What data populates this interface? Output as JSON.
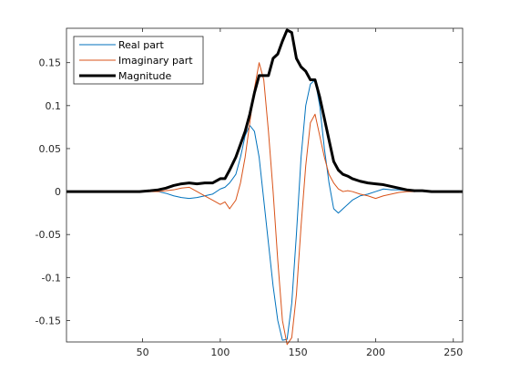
{
  "chart_data": {
    "type": "line",
    "title": "",
    "xlabel": "",
    "ylabel": "",
    "xlim": [
      1,
      256
    ],
    "ylim": [
      -0.175,
      0.19
    ],
    "xticks": [
      50,
      100,
      150,
      200,
      250
    ],
    "xtick_labels": [
      "50",
      "100",
      "150",
      "200",
      "250"
    ],
    "yticks": [
      -0.15,
      -0.1,
      -0.05,
      0,
      0.05,
      0.1,
      0.15
    ],
    "ytick_labels": [
      "-0.15",
      "-0.1",
      "-0.05",
      "0",
      "0.05",
      "0.1",
      "0.15"
    ],
    "grid": false,
    "legend_position": "top-left",
    "series": [
      {
        "name": "Real part",
        "color": "#0072BD",
        "x": [
          1,
          48,
          55,
          60,
          65,
          70,
          75,
          80,
          85,
          90,
          95,
          100,
          103,
          106,
          110,
          113,
          116,
          119,
          122,
          125,
          128,
          131,
          134,
          137,
          140,
          143,
          146,
          149,
          152,
          155,
          158,
          161,
          164,
          167,
          170,
          173,
          176,
          179,
          182,
          185,
          190,
          195,
          200,
          205,
          210,
          215,
          220,
          225,
          230,
          236,
          256
        ],
        "y": [
          0,
          0,
          0.001,
          0,
          -0.002,
          -0.005,
          -0.007,
          -0.008,
          -0.007,
          -0.005,
          -0.003,
          0.003,
          0.005,
          0.01,
          0.02,
          0.04,
          0.065,
          0.077,
          0.07,
          0.04,
          -0.01,
          -0.06,
          -0.11,
          -0.15,
          -0.173,
          -0.172,
          -0.13,
          -0.05,
          0.04,
          0.1,
          0.125,
          0.13,
          0.1,
          0.05,
          0.01,
          -0.02,
          -0.025,
          -0.02,
          -0.015,
          -0.01,
          -0.005,
          -0.003,
          0,
          0.003,
          0.002,
          0.002,
          0.001,
          0,
          0.001,
          0,
          0
        ]
      },
      {
        "name": "Imaginary part",
        "color": "#D95319",
        "x": [
          1,
          48,
          55,
          60,
          65,
          70,
          75,
          80,
          85,
          90,
          95,
          100,
          103,
          106,
          110,
          113,
          116,
          119,
          122,
          125,
          128,
          131,
          134,
          137,
          140,
          143,
          146,
          149,
          152,
          155,
          158,
          161,
          164,
          167,
          170,
          173,
          176,
          179,
          182,
          185,
          190,
          195,
          200,
          205,
          210,
          215,
          220,
          225,
          230,
          236,
          256
        ],
        "y": [
          0,
          0,
          0,
          0,
          0.001,
          0.002,
          0.004,
          0.005,
          0,
          -0.005,
          -0.01,
          -0.015,
          -0.012,
          -0.02,
          -0.01,
          0.01,
          0.04,
          0.08,
          0.12,
          0.15,
          0.13,
          0.07,
          0,
          -0.08,
          -0.15,
          -0.178,
          -0.17,
          -0.12,
          -0.04,
          0.03,
          0.08,
          0.09,
          0.065,
          0.04,
          0.02,
          0.01,
          0.003,
          0,
          0.001,
          0,
          -0.003,
          -0.005,
          -0.008,
          -0.005,
          -0.003,
          -0.001,
          0,
          0,
          0.001,
          0,
          0
        ]
      },
      {
        "name": "Magnitude",
        "color": "#000000",
        "x": [
          1,
          48,
          55,
          60,
          65,
          70,
          75,
          80,
          85,
          90,
          95,
          100,
          103,
          106,
          110,
          113,
          116,
          119,
          122,
          125,
          128,
          131,
          134,
          137,
          140,
          143,
          146,
          149,
          152,
          155,
          158,
          161,
          164,
          167,
          170,
          173,
          176,
          179,
          182,
          185,
          190,
          195,
          200,
          205,
          210,
          215,
          220,
          225,
          230,
          236,
          256
        ],
        "y": [
          0,
          0,
          0.001,
          0.002,
          0.004,
          0.007,
          0.009,
          0.01,
          0.009,
          0.01,
          0.01,
          0.015,
          0.015,
          0.025,
          0.04,
          0.055,
          0.07,
          0.09,
          0.115,
          0.135,
          0.135,
          0.135,
          0.155,
          0.16,
          0.175,
          0.188,
          0.185,
          0.155,
          0.145,
          0.14,
          0.13,
          0.13,
          0.11,
          0.085,
          0.06,
          0.035,
          0.025,
          0.02,
          0.018,
          0.015,
          0.012,
          0.01,
          0.009,
          0.008,
          0.006,
          0.004,
          0.002,
          0.001,
          0.001,
          0,
          0
        ]
      }
    ]
  },
  "legend": {
    "entries": [
      "Real part",
      "Imaginary part",
      "Magnitude"
    ]
  }
}
